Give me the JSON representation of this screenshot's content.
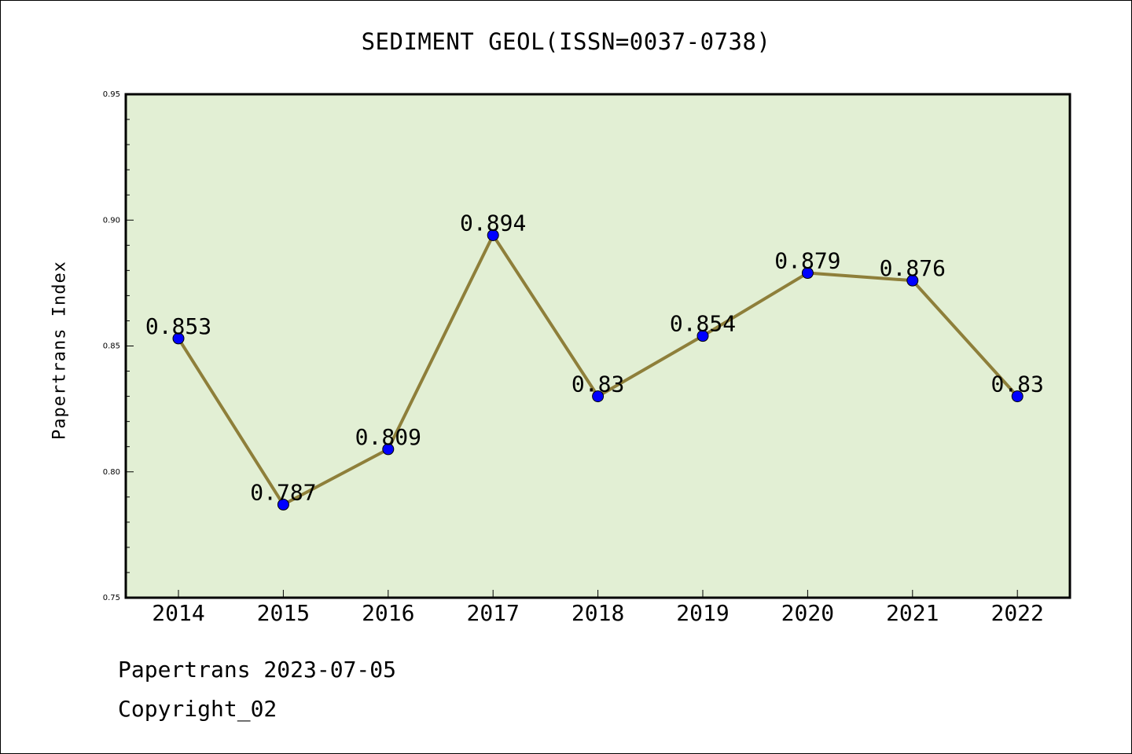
{
  "title": "SEDIMENT GEOL(ISSN=0037-0738)",
  "footer": {
    "line1": "Papertrans 2023-07-05",
    "line2": "Copyright_02"
  },
  "colors": {
    "plot_background": "#e2efd4",
    "line": "#8e7f3a",
    "marker": "#0000ff"
  },
  "chart_data": {
    "type": "line",
    "title": "SEDIMENT GEOL(ISSN=0037-0738)",
    "xlabel": "",
    "ylabel": "Papertrans Index",
    "categories": [
      "2014",
      "2015",
      "2016",
      "2017",
      "2018",
      "2019",
      "2020",
      "2021",
      "2022"
    ],
    "values": [
      0.853,
      0.787,
      0.809,
      0.894,
      0.83,
      0.854,
      0.879,
      0.876,
      0.83
    ],
    "data_labels": [
      "0.853",
      "0.787",
      "0.809",
      "0.894",
      "0.83",
      "0.854",
      "0.879",
      "0.876",
      "0.83"
    ],
    "ylim": [
      0.75,
      0.95
    ],
    "yticks": [
      "0.75",
      "0.80",
      "0.85",
      "0.90",
      "0.95"
    ],
    "grid": false,
    "legend": "none"
  }
}
